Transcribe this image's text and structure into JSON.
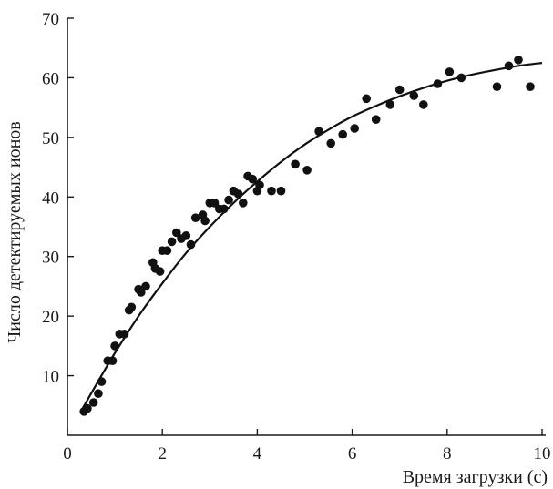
{
  "chart_data": {
    "type": "scatter",
    "title": "",
    "xlabel": "Время загрузки (с)",
    "ylabel": "Число детектируемых ионов",
    "xlim": [
      0,
      10
    ],
    "ylim": [
      0,
      70
    ],
    "xticks": [
      0,
      2,
      4,
      6,
      8,
      10
    ],
    "yticks": [
      10,
      20,
      30,
      40,
      50,
      60,
      70
    ],
    "grid": false,
    "legend": "none",
    "colors": {
      "points": "#111111",
      "curve": "#111111",
      "axes": "#1a1a1a"
    },
    "series": [
      {
        "kind": "points",
        "x": [
          0.35,
          0.42,
          0.55,
          0.65,
          0.72,
          0.85,
          0.95,
          1.0,
          1.1,
          1.2,
          1.3,
          1.35,
          1.5,
          1.55,
          1.65,
          1.8,
          1.85,
          1.95,
          2.0,
          2.1,
          2.2,
          2.3,
          2.4,
          2.5,
          2.6,
          2.7,
          2.85,
          2.9,
          3.0,
          3.1,
          3.2,
          3.3,
          3.4,
          3.5,
          3.6,
          3.7,
          3.8,
          3.9,
          4.0,
          4.05,
          4.3,
          4.5,
          4.8,
          5.05,
          5.3,
          5.55,
          5.8,
          6.05,
          6.3,
          6.5,
          6.8,
          7.0,
          7.3,
          7.5,
          7.8,
          8.05,
          8.3,
          9.05,
          9.3,
          9.5,
          9.75
        ],
        "y": [
          4,
          4.5,
          5.5,
          7,
          9,
          12.5,
          12.5,
          15,
          17,
          17,
          21,
          21.5,
          24.5,
          24,
          25,
          29,
          28,
          27.5,
          31,
          31,
          32.5,
          34,
          33,
          33.5,
          32,
          36.5,
          37,
          36,
          39,
          39,
          38,
          38,
          39.5,
          41,
          40.5,
          39,
          43.5,
          43,
          41,
          42,
          41,
          41,
          45.5,
          44.5,
          51,
          49,
          50.5,
          51.5,
          56.5,
          53,
          55.5,
          58,
          57,
          55.5,
          59,
          61,
          60,
          58.5,
          62,
          63,
          58.5
        ]
      },
      {
        "kind": "fit-curve",
        "x": [
          0.3,
          0.5,
          1.0,
          1.5,
          2.0,
          2.5,
          3.0,
          3.5,
          4.0,
          4.5,
          5.0,
          5.5,
          6.0,
          6.5,
          7.0,
          7.5,
          8.0,
          8.5,
          9.0,
          9.5,
          10.0
        ],
        "y": [
          4.2,
          7.0,
          13.8,
          20.0,
          25.5,
          30.6,
          35.0,
          39.0,
          42.6,
          45.9,
          48.8,
          51.3,
          53.5,
          55.3,
          56.9,
          58.3,
          59.5,
          60.5,
          61.3,
          62.0,
          62.5
        ]
      }
    ]
  }
}
